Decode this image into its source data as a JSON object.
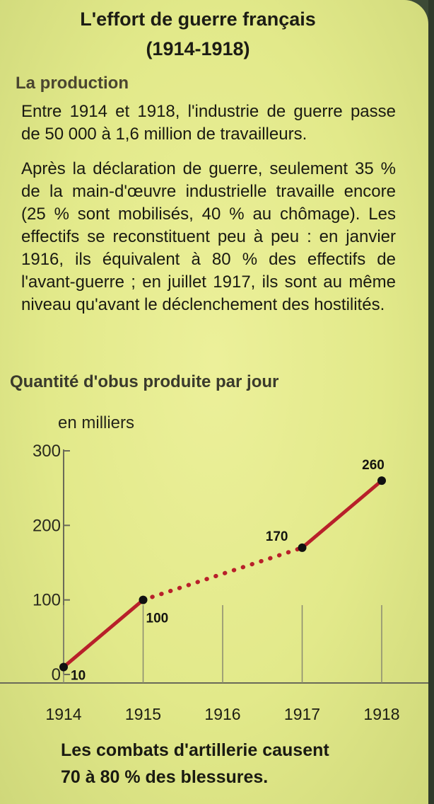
{
  "header": {
    "title_line1": "L'effort de guerre français",
    "title_line2": "(1914-1918)"
  },
  "section": {
    "heading": "La production",
    "paragraph1": "Entre 1914 et 1918, l'industrie de guerre passe de 50 000 à 1,6 million de travailleurs.",
    "paragraph2": "Après la déclaration de guerre, seulement 35 % de la main-d'œuvre industrielle travaille encore (25 % sont mobilisés, 40 % au chômage). Les effectifs se reconstituent peu à peu : en janvier 1916, ils équivalent à 80 % des effectifs de l'avant-guerre ; en juillet 1917, ils sont au même niveau qu'avant le déclenchement des hostilités."
  },
  "footer": {
    "line1": "Les combats d'artillerie causent",
    "line2": "70 à 80 % des blessures."
  },
  "colors": {
    "line": "#b8202a",
    "point": "#111111",
    "axis": "#6a6a58"
  },
  "chart_data": {
    "type": "line",
    "title": "Quantité d'obus produite par jour",
    "ylabel": "en milliers",
    "xlabel": "",
    "x": [
      1914,
      1915,
      1917,
      1918
    ],
    "values": [
      10,
      100,
      170,
      260
    ],
    "data_labels": [
      "10",
      "100",
      "170",
      "260"
    ],
    "segment_styles": [
      "solid",
      "dotted",
      "solid"
    ],
    "xticks": [
      "1914",
      "1915",
      "1916",
      "1917",
      "1918"
    ],
    "yticks": [
      "0",
      "100",
      "200",
      "300"
    ],
    "xlim": [
      1914,
      1918
    ],
    "ylim": [
      0,
      300
    ],
    "grid": false
  }
}
